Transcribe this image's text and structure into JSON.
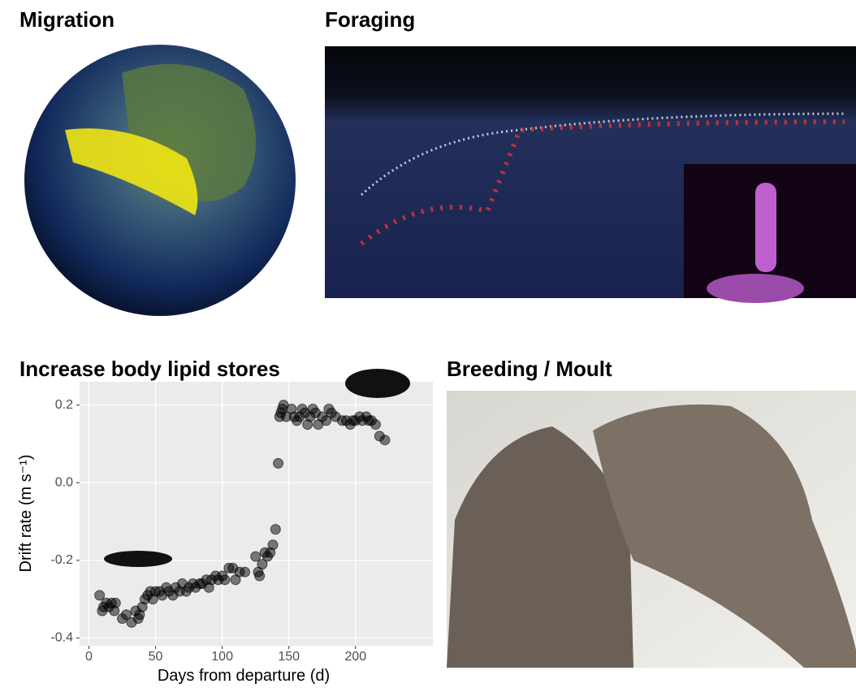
{
  "panels": {
    "migration": "Migration",
    "foraging": "Foraging",
    "breeding": "Breeding / Moult"
  },
  "chart_data": {
    "type": "scatter",
    "title": "Increase body lipid stores",
    "x_label": "Days from departure (d)",
    "y_label": "Drift rate (m s⁻¹)",
    "x": [
      8,
      10,
      11,
      13,
      15,
      17,
      19,
      20,
      25,
      28,
      32,
      35,
      37,
      38,
      40,
      42,
      44,
      46,
      48,
      50,
      53,
      55,
      58,
      60,
      63,
      65,
      68,
      70,
      73,
      75,
      78,
      80,
      83,
      85,
      88,
      90,
      92,
      95,
      97,
      100,
      102,
      105,
      108,
      110,
      113,
      117,
      125,
      127,
      128,
      130,
      132,
      134,
      136,
      138,
      140,
      142,
      143,
      144,
      145,
      146,
      148,
      152,
      154,
      156,
      158,
      160,
      162,
      164,
      166,
      168,
      170,
      172,
      175,
      178,
      180,
      182,
      185,
      190,
      193,
      196,
      198,
      200,
      203,
      205,
      208,
      210,
      212,
      215,
      218,
      222
    ],
    "series": [
      {
        "color": "#000000",
        "values": [
          -0.29,
          -0.33,
          -0.32,
          -0.31,
          -0.32,
          -0.31,
          -0.33,
          -0.31,
          -0.35,
          -0.34,
          -0.36,
          -0.33,
          -0.35,
          -0.34,
          -0.32,
          -0.3,
          -0.29,
          -0.28,
          -0.3,
          -0.28,
          -0.28,
          -0.29,
          -0.27,
          -0.28,
          -0.29,
          -0.27,
          -0.28,
          -0.26,
          -0.28,
          -0.27,
          -0.26,
          -0.27,
          -0.26,
          -0.26,
          -0.25,
          -0.27,
          -0.25,
          -0.24,
          -0.25,
          -0.24,
          -0.25,
          -0.22,
          -0.22,
          -0.25,
          -0.23,
          -0.23,
          -0.19,
          -0.23,
          -0.24,
          -0.21,
          -0.18,
          -0.19,
          -0.18,
          -0.16,
          -0.12,
          0.05,
          0.17,
          0.18,
          0.19,
          0.2,
          0.17,
          0.19,
          0.17,
          0.16,
          0.17,
          0.19,
          0.18,
          0.15,
          0.17,
          0.19,
          0.18,
          0.15,
          0.17,
          0.16,
          0.19,
          0.18,
          0.17,
          0.16,
          0.16,
          0.15,
          0.16,
          0.16,
          0.17,
          0.16,
          0.17,
          0.16,
          0.16,
          0.15,
          0.12,
          0.11
        ]
      }
    ],
    "xlim": [
      -7,
      258
    ],
    "ylim": [
      -0.42,
      0.26
    ],
    "xticks": [
      0,
      50,
      100,
      150,
      200
    ],
    "yticks": [
      -0.4,
      -0.2,
      {
        "value": 0,
        "label": "0.0"
      },
      0.2
    ],
    "grid": true
  }
}
